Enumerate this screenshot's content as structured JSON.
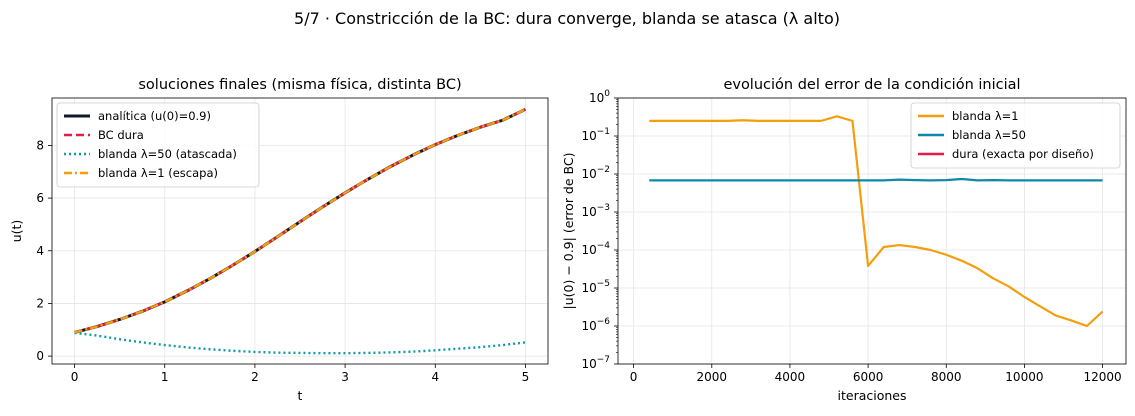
{
  "suptitle": "5/7 · Constricción de la BC: dura converge, blanda se atasca (λ alto)",
  "chart_data": [
    {
      "type": "line",
      "title": "soluciones finales (misma física, distinta BC)",
      "xlabel": "t",
      "ylabel": "u(t)",
      "xlim": [
        -0.25,
        5.25
      ],
      "ylim": [
        -0.3,
        9.8
      ],
      "xticks": [
        0,
        1,
        2,
        3,
        4,
        5
      ],
      "xtick_labels": [
        "0",
        "1",
        "2",
        "3",
        "4",
        "5"
      ],
      "yticks": [
        0,
        2,
        4,
        6,
        8
      ],
      "ytick_labels": [
        "0",
        "2",
        "4",
        "6",
        "8"
      ],
      "grid": true,
      "legend_position": "upper-left",
      "series": [
        {
          "name": "analítica (u(0)=0.9)",
          "color": "#111827",
          "style": "solid",
          "x": [
            0,
            0.25,
            0.5,
            0.75,
            1,
            1.25,
            1.5,
            1.75,
            2,
            2.25,
            2.5,
            2.75,
            3,
            3.25,
            3.5,
            3.75,
            4,
            4.25,
            4.5,
            4.75,
            5
          ],
          "y": [
            0.9,
            1.12,
            1.39,
            1.7,
            2.06,
            2.48,
            2.94,
            3.44,
            3.97,
            4.53,
            5.1,
            5.66,
            6.2,
            6.71,
            7.19,
            7.63,
            8.03,
            8.38,
            8.69,
            8.96,
            9.37
          ]
        },
        {
          "name": "BC dura",
          "color": "#e11d48",
          "style": "dashed",
          "x": [
            0,
            0.25,
            0.5,
            0.75,
            1,
            1.25,
            1.5,
            1.75,
            2,
            2.25,
            2.5,
            2.75,
            3,
            3.25,
            3.5,
            3.75,
            4,
            4.25,
            4.5,
            4.75,
            5
          ],
          "y": [
            0.9,
            1.12,
            1.39,
            1.7,
            2.06,
            2.48,
            2.94,
            3.44,
            3.97,
            4.53,
            5.1,
            5.66,
            6.2,
            6.71,
            7.19,
            7.63,
            8.03,
            8.38,
            8.69,
            8.96,
            9.37
          ]
        },
        {
          "name": "blanda λ=50 (atascada)",
          "color": "#0e9aa7",
          "style": "dotted",
          "x": [
            0,
            0.25,
            0.5,
            0.75,
            1,
            1.25,
            1.5,
            1.75,
            2,
            2.25,
            2.5,
            2.75,
            3,
            3.25,
            3.5,
            3.75,
            4,
            4.25,
            4.5,
            4.75,
            5
          ],
          "y": [
            0.88,
            0.78,
            0.64,
            0.52,
            0.42,
            0.33,
            0.26,
            0.2,
            0.16,
            0.13,
            0.12,
            0.11,
            0.11,
            0.12,
            0.14,
            0.17,
            0.22,
            0.28,
            0.34,
            0.42,
            0.52
          ]
        },
        {
          "name": "blanda λ=1 (escapa)",
          "color": "#f59e0b",
          "style": "dashdot",
          "x": [
            0,
            0.25,
            0.5,
            0.75,
            1,
            1.25,
            1.5,
            1.75,
            2,
            2.25,
            2.5,
            2.75,
            3,
            3.25,
            3.5,
            3.75,
            4,
            4.25,
            4.5,
            4.75,
            5
          ],
          "y": [
            0.9,
            1.12,
            1.39,
            1.7,
            2.06,
            2.48,
            2.94,
            3.44,
            3.97,
            4.53,
            5.1,
            5.66,
            6.2,
            6.71,
            7.19,
            7.63,
            8.03,
            8.38,
            8.69,
            8.96,
            9.37
          ]
        }
      ]
    },
    {
      "type": "line",
      "title": "evolución del error de la condición inicial",
      "xlabel": "iteraciones",
      "ylabel": "|u(0) − 0.9| (error de BC)",
      "yscale": "log",
      "xlim": [
        -400,
        12600
      ],
      "ylim": [
        1e-07,
        1
      ],
      "xticks": [
        0,
        2000,
        4000,
        6000,
        8000,
        10000,
        12000
      ],
      "xtick_labels": [
        "0",
        "2000",
        "4000",
        "6000",
        "8000",
        "10000",
        "12000"
      ],
      "ytick_exponents": [
        0,
        -1,
        -2,
        -3,
        -4,
        -5,
        -6,
        -7
      ],
      "ytick_base": "10",
      "grid": true,
      "legend_position": "upper-right",
      "series": [
        {
          "name": "blanda λ=1",
          "color": "#f59e0b",
          "style": "solid",
          "x": [
            400,
            800,
            1200,
            1600,
            2000,
            2400,
            2800,
            3200,
            3600,
            4000,
            4400,
            4800,
            5200,
            5600,
            6000,
            6400,
            6800,
            7200,
            7600,
            8000,
            8400,
            8800,
            9200,
            9600,
            10000,
            10400,
            10800,
            11200,
            11600,
            12000
          ],
          "y": [
            0.25,
            0.25,
            0.25,
            0.25,
            0.25,
            0.25,
            0.26,
            0.25,
            0.25,
            0.25,
            0.25,
            0.25,
            0.33,
            0.25,
            3.8e-05,
            0.00012,
            0.000135,
            0.00012,
            0.0001,
            7.5e-05,
            5.2e-05,
            3.3e-05,
            1.8e-05,
            1.1e-05,
            5.8e-06,
            3.3e-06,
            1.9e-06,
            1.4e-06,
            1e-06,
            2.4e-06
          ]
        },
        {
          "name": "blanda λ=50",
          "color": "#0e88a8",
          "style": "solid",
          "x": [
            400,
            800,
            1200,
            1600,
            2000,
            2400,
            2800,
            3200,
            3600,
            4000,
            4400,
            4800,
            5200,
            5600,
            6000,
            6400,
            6800,
            7200,
            7600,
            8000,
            8400,
            8800,
            9200,
            9600,
            10000,
            10400,
            10800,
            11200,
            11600,
            12000
          ],
          "y": [
            0.0068,
            0.0068,
            0.0068,
            0.0068,
            0.0068,
            0.0068,
            0.0068,
            0.0068,
            0.0068,
            0.0068,
            0.0068,
            0.0068,
            0.0068,
            0.0068,
            0.0068,
            0.0068,
            0.0071,
            0.0069,
            0.0068,
            0.0069,
            0.0074,
            0.0068,
            0.0069,
            0.0068,
            0.0068,
            0.0068,
            0.0068,
            0.0068,
            0.0068,
            0.0068
          ]
        },
        {
          "name": "dura (exacta por diseño)",
          "color": "#e11d48",
          "style": "solid",
          "x": [],
          "y": []
        }
      ]
    }
  ]
}
